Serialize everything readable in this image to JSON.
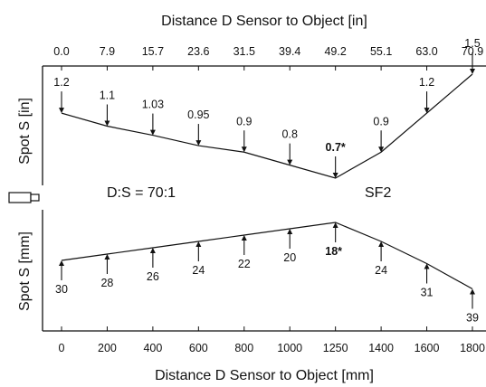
{
  "title_top": "Distance D Sensor to Object [in]",
  "title_bottom": "Distance D Sensor to Object [mm]",
  "ylabel_top": "Spot S [in]",
  "ylabel_bottom": "Spot S [mm]",
  "ratio_label": "D:S = 70:1",
  "model_label": "SF2",
  "colors": {
    "line": "#111111",
    "background": "#ffffff"
  },
  "chart_data": {
    "type": "line",
    "x_mm": [
      0,
      200,
      400,
      600,
      800,
      1000,
      1250,
      1400,
      1600,
      1800
    ],
    "x_in": [
      "0.0",
      "7.9",
      "15.7",
      "23.6",
      "31.5",
      "39.4",
      "49.2",
      "55.1",
      "63.0",
      "70.9"
    ],
    "spot_in": [
      "1.2",
      "1.1",
      "1.03",
      "0.95",
      "0.9",
      "0.8",
      "0.7*",
      "0.9",
      "1.2",
      "1.5"
    ],
    "spot_mm": [
      "30",
      "28",
      "26",
      "24",
      "22",
      "20",
      "18*",
      "24",
      "31",
      "39"
    ],
    "focus_index": 6
  }
}
